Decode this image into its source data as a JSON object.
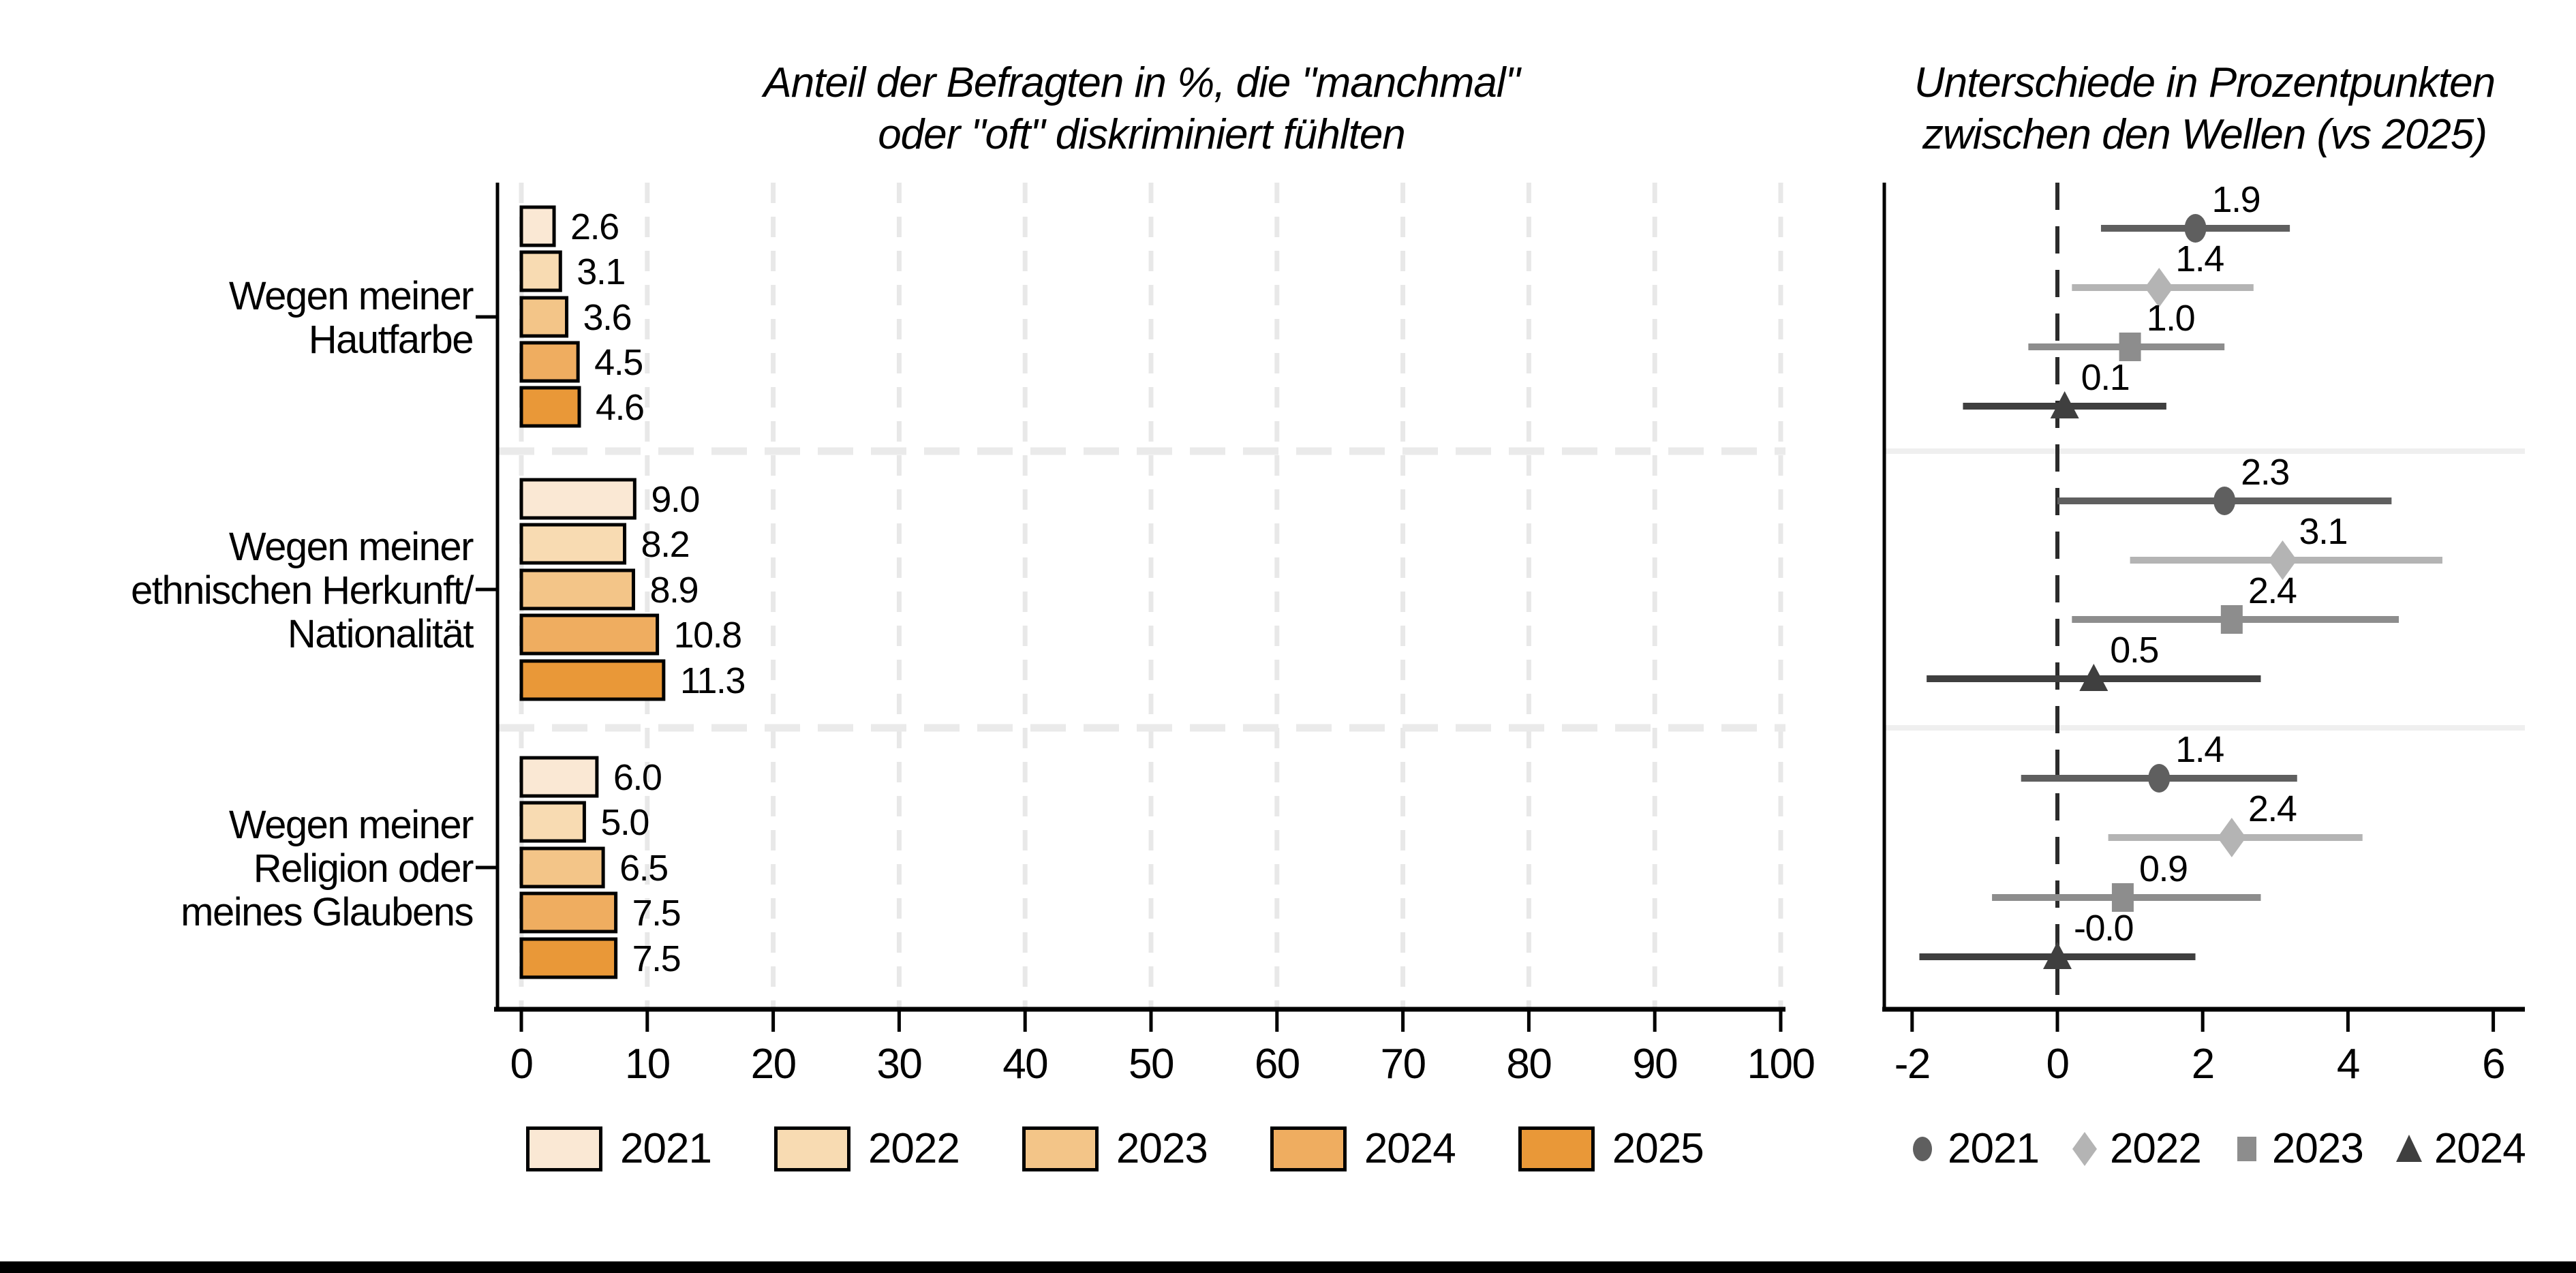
{
  "figure": {
    "background": "#ffffff",
    "footer_bar_color": "#000000"
  },
  "left_panel": {
    "title_line1": "Anteil der Befragten in %, die \"manchmal\"",
    "title_line2": "oder \"oft\" diskriminiert fühlten"
  },
  "right_panel": {
    "title_line1": "Unterschiede in Prozentpunkten",
    "title_line2": "zwischen den Wellen (vs 2025)"
  },
  "chart_data": [
    {
      "type": "bar",
      "orientation": "horizontal",
      "title": "Anteil der Befragten in %, die \"manchmal\" oder \"oft\" diskriminiert fühlten",
      "categories": [
        "Wegen meiner Hautfarbe",
        "Wegen meiner ethnischen Herkunft/ Nationalität",
        "Wegen meiner Religion oder meines Glaubens"
      ],
      "category_label_lines": [
        [
          "Wegen meiner",
          "Hautfarbe"
        ],
        [
          "Wegen meiner",
          "ethnischen Herkunft/",
          "Nationalität"
        ],
        [
          "Wegen meiner",
          "Religion oder",
          "meines Glaubens"
        ]
      ],
      "series": [
        {
          "name": "2021",
          "color": "#FAE8D4",
          "values": [
            2.6,
            9.0,
            6.0
          ],
          "labels": [
            "2.6",
            "9.0",
            "6.0"
          ]
        },
        {
          "name": "2022",
          "color": "#F8DBB2",
          "values": [
            3.1,
            8.2,
            5.0
          ],
          "labels": [
            "3.1",
            "8.2",
            "5.0"
          ]
        },
        {
          "name": "2023",
          "color": "#F3C588",
          "values": [
            3.6,
            8.9,
            6.5
          ],
          "labels": [
            "3.6",
            "8.9",
            "6.5"
          ]
        },
        {
          "name": "2024",
          "color": "#EFAD60",
          "values": [
            4.5,
            10.8,
            7.5
          ],
          "labels": [
            "4.5",
            "10.8",
            "7.5"
          ]
        },
        {
          "name": "2025",
          "color": "#E99838",
          "values": [
            4.6,
            11.3,
            7.5
          ],
          "labels": [
            "4.6",
            "11.3",
            "7.5"
          ]
        }
      ],
      "xlim": [
        0,
        100
      ],
      "xticks": [
        "0",
        "10",
        "20",
        "30",
        "40",
        "50",
        "60",
        "70",
        "80",
        "90",
        "100"
      ],
      "grid": "vertical-dashed-light",
      "legend_position": "bottom"
    },
    {
      "type": "scatter",
      "subtype": "dot-with-ci",
      "title": "Unterschiede in Prozentpunkten zwischen den Wellen (vs 2025)",
      "categories": [
        "Wegen meiner Hautfarbe",
        "Wegen meiner ethnischen Herkunft/ Nationalität",
        "Wegen meiner Religion oder meines Glaubens"
      ],
      "series": [
        {
          "name": "2021",
          "marker": "circle",
          "color": "#5F5F5F",
          "points": [
            {
              "est": 1.9,
              "label": "1.9",
              "ci_low": 0.6,
              "ci_high": 3.2
            },
            {
              "est": 2.3,
              "label": "2.3",
              "ci_low": 0.0,
              "ci_high": 4.6
            },
            {
              "est": 1.4,
              "label": "1.4",
              "ci_low": -0.5,
              "ci_high": 3.3
            }
          ]
        },
        {
          "name": "2022",
          "marker": "diamond",
          "color": "#B4B4B4",
          "points": [
            {
              "est": 1.4,
              "label": "1.4",
              "ci_low": 0.2,
              "ci_high": 2.7
            },
            {
              "est": 3.1,
              "label": "3.1",
              "ci_low": 1.0,
              "ci_high": 5.3
            },
            {
              "est": 2.4,
              "label": "2.4",
              "ci_low": 0.7,
              "ci_high": 4.2
            }
          ]
        },
        {
          "name": "2023",
          "marker": "square",
          "color": "#8D8D8D",
          "points": [
            {
              "est": 1.0,
              "label": "1.0",
              "ci_low": -0.4,
              "ci_high": 2.3
            },
            {
              "est": 2.4,
              "label": "2.4",
              "ci_low": 0.2,
              "ci_high": 4.7
            },
            {
              "est": 0.9,
              "label": "0.9",
              "ci_low": -0.9,
              "ci_high": 2.8
            }
          ]
        },
        {
          "name": "2024",
          "marker": "triangle",
          "color": "#3F3F3F",
          "points": [
            {
              "est": 0.1,
              "label": "0.1",
              "ci_low": -1.3,
              "ci_high": 1.5
            },
            {
              "est": 0.5,
              "label": "0.5",
              "ci_low": -1.8,
              "ci_high": 2.8
            },
            {
              "est": -0.0,
              "label": "-0.0",
              "ci_low": -1.9,
              "ci_high": 1.9
            }
          ]
        }
      ],
      "xticks": [
        "-2",
        "0",
        "2",
        "4",
        "6"
      ],
      "xlim": [
        -2.4,
        6.4
      ],
      "reference_line": 0,
      "legend_position": "bottom"
    }
  ]
}
